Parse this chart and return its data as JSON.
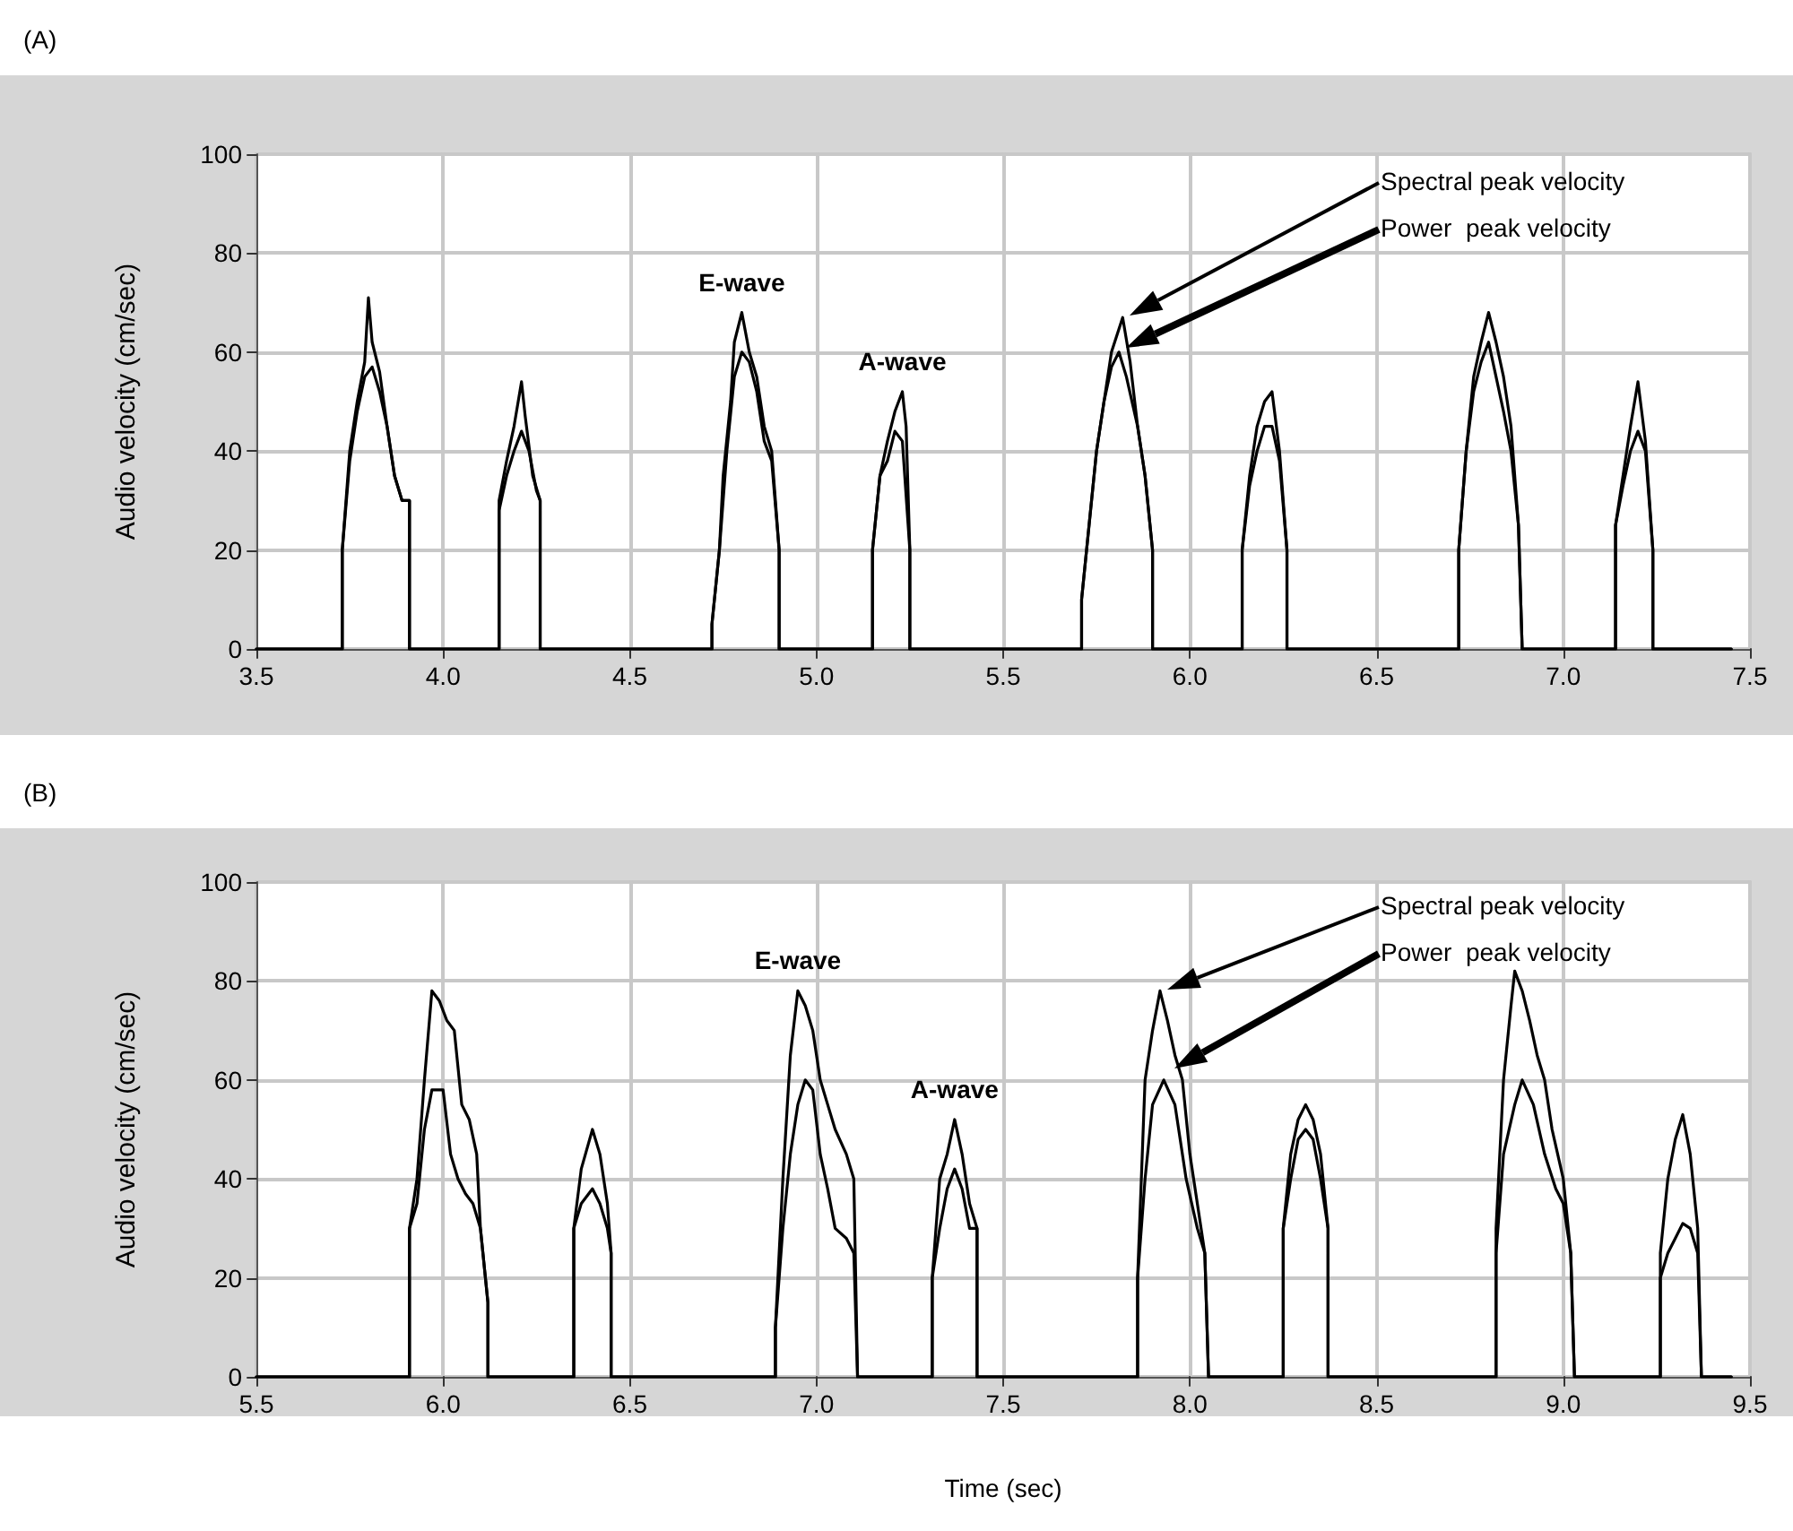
{
  "chart_data": [
    {
      "type": "line",
      "title": "(A)",
      "ylabel": "Audio velocity (cm/sec)",
      "xlim": [
        3.5,
        7.5
      ],
      "ylim": [
        0,
        100
      ],
      "xticks": [
        3.5,
        {
          "value": 4,
          "label": "4.0"
        },
        4.5,
        {
          "value": 5,
          "label": "5.0"
        },
        5.5,
        {
          "value": 6,
          "label": "6.0"
        },
        6.5,
        {
          "value": 7,
          "label": "7.0"
        },
        7.5
      ],
      "yticks": [
        0,
        20,
        40,
        60,
        80,
        100
      ],
      "grid": true,
      "annotations": [
        {
          "text": "E-wave",
          "x": 4.8,
          "y": 68
        },
        {
          "text": "A-wave",
          "x": 5.23,
          "y": 52
        },
        "Spectral peak velocity",
        "Power  peak velocity"
      ],
      "series": [
        {
          "color": "#000000",
          "x": [
            3.5,
            3.73,
            3.73,
            3.75,
            3.77,
            3.79,
            3.8,
            3.81,
            3.83,
            3.85,
            3.87,
            3.89,
            3.91,
            3.91,
            4.15,
            4.15,
            4.17,
            4.19,
            4.21,
            4.22,
            4.24,
            4.26,
            4.26,
            4.72,
            4.72,
            4.74,
            4.75,
            4.77,
            4.78,
            4.8,
            4.82,
            4.84,
            4.86,
            4.88,
            4.9,
            4.9,
            5.15,
            5.15,
            5.17,
            5.19,
            5.21,
            5.23,
            5.24,
            5.25,
            5.25,
            5.71,
            5.71,
            5.73,
            5.75,
            5.77,
            5.79,
            5.82,
            5.84,
            5.86,
            5.88,
            5.9,
            5.9,
            6.14,
            6.14,
            6.16,
            6.18,
            6.2,
            6.22,
            6.24,
            6.26,
            6.26,
            6.72,
            6.72,
            6.74,
            6.76,
            6.78,
            6.8,
            6.82,
            6.84,
            6.86,
            6.88,
            6.89,
            7.14,
            7.14,
            7.16,
            7.18,
            7.2,
            7.22,
            7.24,
            7.24,
            7.45
          ],
          "values": [
            0,
            0,
            20,
            40,
            50,
            58,
            71,
            62,
            56,
            45,
            35,
            30,
            30,
            0,
            0,
            30,
            38,
            45,
            54,
            47,
            35,
            30,
            0,
            0,
            5,
            20,
            35,
            50,
            62,
            68,
            60,
            55,
            45,
            40,
            20,
            0,
            0,
            20,
            35,
            42,
            48,
            52,
            45,
            20,
            0,
            0,
            10,
            25,
            40,
            50,
            60,
            67,
            58,
            45,
            35,
            20,
            0,
            0,
            20,
            35,
            45,
            50,
            52,
            40,
            20,
            0,
            0,
            20,
            40,
            55,
            62,
            68,
            62,
            55,
            45,
            25,
            0,
            0,
            25,
            35,
            45,
            54,
            42,
            20,
            0,
            0
          ]
        },
        {
          "color": "#000000",
          "x": [
            3.5,
            3.73,
            3.73,
            3.75,
            3.77,
            3.79,
            3.81,
            3.83,
            3.85,
            3.87,
            3.89,
            3.91,
            3.91,
            4.15,
            4.15,
            4.17,
            4.19,
            4.21,
            4.23,
            4.25,
            4.26,
            4.26,
            4.72,
            4.72,
            4.74,
            4.76,
            4.78,
            4.8,
            4.82,
            4.84,
            4.86,
            4.88,
            4.9,
            4.9,
            5.15,
            5.15,
            5.17,
            5.19,
            5.21,
            5.23,
            5.25,
            5.25,
            5.71,
            5.71,
            5.73,
            5.75,
            5.77,
            5.79,
            5.81,
            5.83,
            5.86,
            5.88,
            5.9,
            5.9,
            6.14,
            6.14,
            6.16,
            6.18,
            6.2,
            6.22,
            6.24,
            6.26,
            6.26,
            6.72,
            6.72,
            6.74,
            6.76,
            6.78,
            6.8,
            6.82,
            6.84,
            6.86,
            6.88,
            6.89,
            7.14,
            7.14,
            7.16,
            7.18,
            7.2,
            7.22,
            7.24,
            7.24,
            7.45
          ],
          "values": [
            0,
            0,
            20,
            38,
            48,
            55,
            57,
            52,
            45,
            35,
            30,
            30,
            0,
            0,
            28,
            35,
            40,
            44,
            40,
            32,
            30,
            0,
            0,
            5,
            20,
            40,
            55,
            60,
            58,
            52,
            42,
            38,
            20,
            0,
            0,
            20,
            35,
            38,
            44,
            42,
            20,
            0,
            0,
            10,
            25,
            40,
            50,
            57,
            60,
            55,
            45,
            35,
            20,
            0,
            0,
            20,
            33,
            40,
            45,
            45,
            38,
            20,
            0,
            0,
            20,
            40,
            52,
            58,
            62,
            55,
            48,
            40,
            25,
            0,
            0,
            25,
            33,
            40,
            44,
            40,
            20,
            0,
            0
          ]
        }
      ]
    },
    {
      "type": "line",
      "title": "(B)",
      "xlabel": "Time (sec)",
      "ylabel": "Audio velocity (cm/sec)",
      "xlim": [
        5.5,
        9.5
      ],
      "ylim": [
        0,
        100
      ],
      "xticks": [
        5.5,
        {
          "value": 6,
          "label": "6.0"
        },
        6.5,
        {
          "value": 7,
          "label": "7.0"
        },
        7.5,
        {
          "value": 8,
          "label": "8.0"
        },
        8.5,
        {
          "value": 9,
          "label": "9.0"
        },
        9.5
      ],
      "yticks": [
        0,
        20,
        40,
        60,
        80,
        100
      ],
      "grid": true,
      "annotations": [
        {
          "text": "E-wave",
          "x": 6.95,
          "y": 78
        },
        {
          "text": "A-wave",
          "x": 7.37,
          "y": 52
        },
        "Spectral peak velocity",
        "Power  peak velocity"
      ],
      "series": [
        {
          "color": "#000000",
          "x": [
            5.5,
            5.91,
            5.91,
            5.93,
            5.95,
            5.97,
            5.99,
            6.01,
            6.03,
            6.05,
            6.07,
            6.09,
            6.1,
            6.12,
            6.12,
            6.35,
            6.35,
            6.37,
            6.4,
            6.42,
            6.44,
            6.45,
            6.45,
            6.89,
            6.89,
            6.91,
            6.93,
            6.95,
            6.97,
            6.99,
            7.01,
            7.03,
            7.05,
            7.08,
            7.1,
            7.11,
            7.31,
            7.31,
            7.33,
            7.35,
            7.37,
            7.39,
            7.41,
            7.43,
            7.43,
            7.86,
            7.86,
            7.88,
            7.9,
            7.92,
            7.94,
            7.96,
            7.98,
            8.0,
            8.02,
            8.04,
            8.05,
            8.25,
            8.25,
            8.27,
            8.29,
            8.31,
            8.33,
            8.35,
            8.37,
            8.37,
            8.82,
            8.82,
            8.84,
            8.86,
            8.87,
            8.89,
            8.91,
            8.93,
            8.95,
            8.97,
            9.0,
            9.02,
            9.03,
            9.26,
            9.26,
            9.28,
            9.3,
            9.32,
            9.34,
            9.36,
            9.37,
            9.45
          ],
          "values": [
            0,
            0,
            30,
            40,
            60,
            78,
            76,
            72,
            70,
            55,
            52,
            45,
            30,
            15,
            0,
            0,
            30,
            42,
            50,
            45,
            35,
            25,
            0,
            0,
            10,
            40,
            65,
            78,
            75,
            70,
            60,
            55,
            50,
            45,
            40,
            0,
            0,
            20,
            40,
            45,
            52,
            45,
            35,
            30,
            0,
            0,
            20,
            60,
            70,
            78,
            72,
            65,
            60,
            45,
            35,
            25,
            0,
            0,
            30,
            45,
            52,
            55,
            52,
            45,
            30,
            0,
            0,
            30,
            60,
            75,
            82,
            78,
            72,
            65,
            60,
            50,
            40,
            25,
            0,
            0,
            25,
            40,
            48,
            53,
            45,
            30,
            0,
            0
          ]
        },
        {
          "color": "#000000",
          "x": [
            5.5,
            5.91,
            5.91,
            5.93,
            5.95,
            5.97,
            6.0,
            6.02,
            6.04,
            6.06,
            6.08,
            6.1,
            6.12,
            6.12,
            6.35,
            6.35,
            6.37,
            6.4,
            6.42,
            6.44,
            6.45,
            6.45,
            6.89,
            6.89,
            6.91,
            6.93,
            6.95,
            6.97,
            6.99,
            7.01,
            7.03,
            7.05,
            7.08,
            7.1,
            7.11,
            7.31,
            7.31,
            7.33,
            7.35,
            7.37,
            7.39,
            7.41,
            7.43,
            7.43,
            7.86,
            7.86,
            7.88,
            7.9,
            7.93,
            7.96,
            7.99,
            8.02,
            8.04,
            8.05,
            8.25,
            8.25,
            8.27,
            8.29,
            8.31,
            8.33,
            8.35,
            8.37,
            8.37,
            8.82,
            8.82,
            8.84,
            8.87,
            8.89,
            8.92,
            8.95,
            8.98,
            9.0,
            9.02,
            9.03,
            9.26,
            9.26,
            9.28,
            9.3,
            9.32,
            9.34,
            9.36,
            9.37,
            9.45
          ],
          "values": [
            0,
            0,
            30,
            35,
            50,
            58,
            58,
            45,
            40,
            37,
            35,
            30,
            15,
            0,
            0,
            30,
            35,
            38,
            35,
            30,
            25,
            0,
            0,
            10,
            30,
            45,
            55,
            60,
            58,
            45,
            38,
            30,
            28,
            25,
            0,
            0,
            20,
            30,
            38,
            42,
            38,
            30,
            30,
            0,
            0,
            20,
            40,
            55,
            60,
            55,
            40,
            30,
            25,
            0,
            0,
            30,
            40,
            48,
            50,
            48,
            40,
            30,
            0,
            0,
            25,
            45,
            55,
            60,
            55,
            45,
            38,
            35,
            25,
            0,
            0,
            20,
            25,
            28,
            31,
            30,
            25,
            0,
            0
          ]
        }
      ]
    }
  ]
}
